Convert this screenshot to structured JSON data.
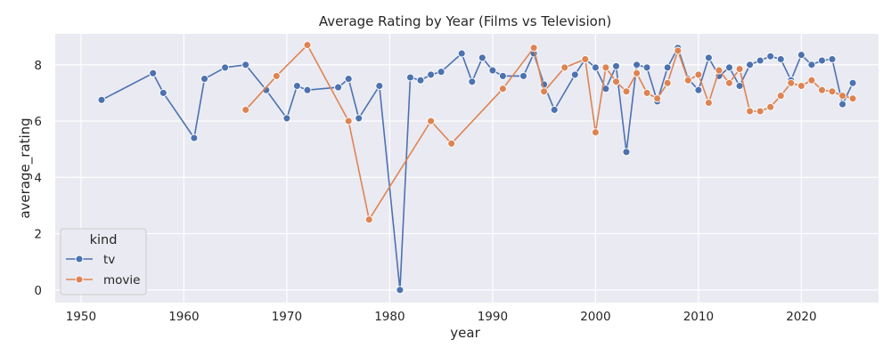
{
  "chart_data": {
    "type": "line",
    "title": "Average Rating by Year (Films vs Television)",
    "xlabel": "year",
    "ylabel": "average_rating",
    "xlim": [
      1947.5,
      2027.5
    ],
    "ylim": [
      -0.45,
      9.1
    ],
    "xticks": [
      1950,
      1960,
      1970,
      1980,
      1990,
      2000,
      2010,
      2020
    ],
    "yticks": [
      0,
      2,
      4,
      6,
      8
    ],
    "grid": true,
    "legend": {
      "title": "kind",
      "placement": "bottom-left"
    },
    "series": [
      {
        "name": "tv",
        "color": "#4c72b0",
        "x": [
          1952,
          1957,
          1958,
          1961,
          1962,
          1964,
          1966,
          1968,
          1970,
          1971,
          1972,
          1975,
          1976,
          1977,
          1979,
          1981,
          1982,
          1983,
          1984,
          1985,
          1987,
          1988,
          1989,
          1990,
          1991,
          1993,
          1994,
          1995,
          1996,
          1998,
          1999,
          2000,
          2001,
          2002,
          2003,
          2004,
          2005,
          2006,
          2007,
          2008,
          2009,
          2010,
          2011,
          2012,
          2013,
          2014,
          2015,
          2016,
          2017,
          2018,
          2019,
          2020,
          2021,
          2022,
          2023,
          2024,
          2025
        ],
        "y": [
          6.75,
          7.7,
          7.0,
          5.4,
          7.5,
          7.9,
          8.0,
          7.1,
          6.1,
          7.25,
          7.1,
          7.2,
          7.5,
          6.1,
          7.25,
          0.0,
          7.55,
          7.45,
          7.65,
          7.75,
          8.4,
          7.4,
          8.25,
          7.8,
          7.6,
          7.6,
          8.4,
          7.3,
          6.4,
          7.65,
          8.2,
          7.9,
          7.15,
          7.95,
          4.9,
          8.0,
          7.9,
          6.7,
          7.9,
          8.6,
          7.5,
          7.1,
          8.25,
          7.6,
          7.9,
          7.25,
          8.0,
          8.15,
          8.3,
          8.2,
          7.45,
          8.35,
          8.0,
          8.15,
          8.2,
          6.6,
          7.35
        ]
      },
      {
        "name": "movie",
        "color": "#dd8452",
        "x": [
          1966,
          1969,
          1972,
          1976,
          1978,
          1984,
          1986,
          1991,
          1994,
          1995,
          1997,
          1999,
          2000,
          2001,
          2002,
          2003,
          2004,
          2005,
          2006,
          2007,
          2008,
          2009,
          2010,
          2011,
          2012,
          2013,
          2014,
          2015,
          2016,
          2017,
          2018,
          2019,
          2020,
          2021,
          2022,
          2023,
          2024,
          2025
        ],
        "y": [
          6.4,
          7.6,
          8.7,
          6.0,
          2.5,
          6.0,
          5.2,
          7.15,
          8.6,
          7.05,
          7.9,
          8.2,
          5.6,
          7.9,
          7.4,
          7.05,
          7.7,
          7.0,
          6.8,
          7.35,
          8.5,
          7.45,
          7.65,
          6.65,
          7.8,
          7.35,
          7.85,
          6.35,
          6.35,
          6.5,
          6.9,
          7.35,
          7.25,
          7.45,
          7.1,
          7.05,
          6.9,
          6.8
        ]
      }
    ]
  }
}
